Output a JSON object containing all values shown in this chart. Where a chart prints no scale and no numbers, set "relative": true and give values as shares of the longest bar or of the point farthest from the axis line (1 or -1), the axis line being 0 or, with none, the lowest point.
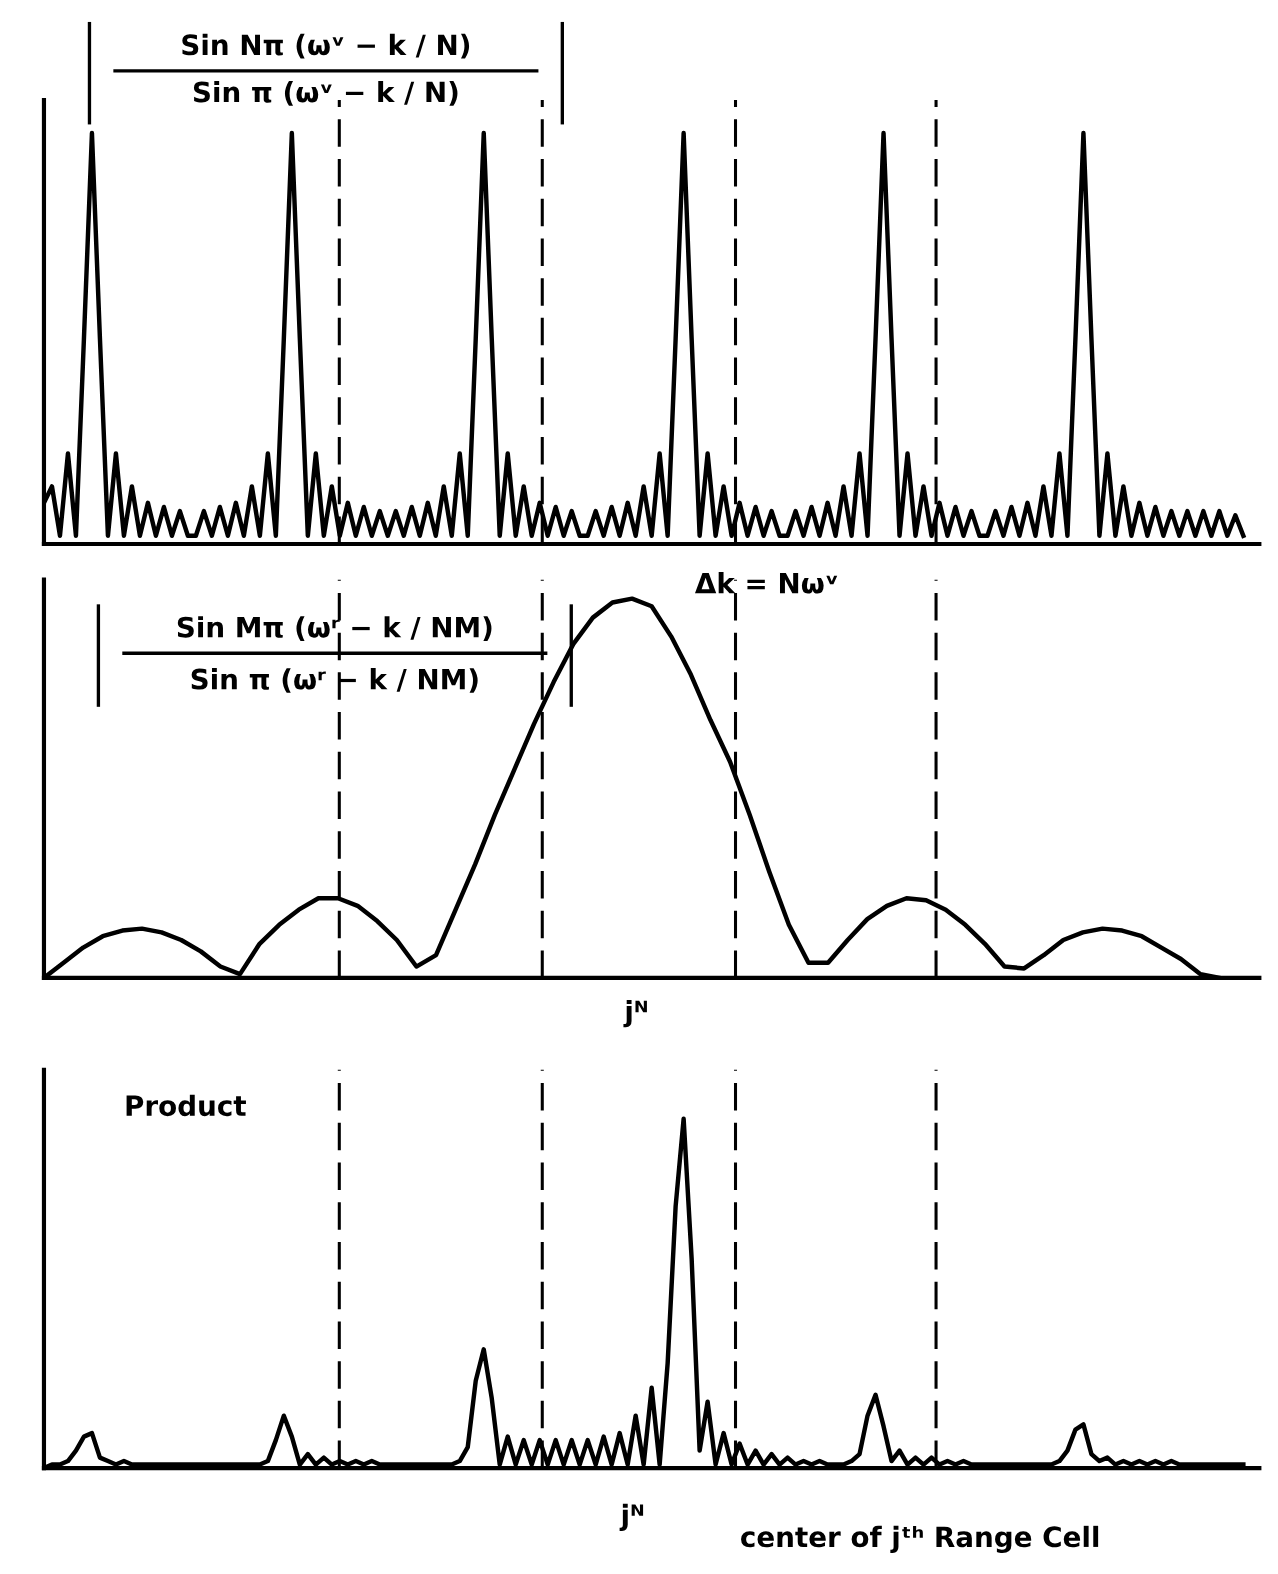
{
  "chart_data": [
    {
      "type": "line",
      "relative": true,
      "color": "#000000",
      "line_style": "solid",
      "categories": [
        null,
        null,
        null,
        null,
        null,
        null,
        null,
        null,
        null,
        null,
        null,
        null,
        null,
        null,
        null,
        null,
        null,
        null,
        null,
        null,
        null,
        null,
        null,
        null,
        null,
        null,
        null,
        null,
        null,
        null,
        null,
        null,
        null,
        null,
        null,
        null,
        null,
        null,
        null,
        null,
        null,
        null,
        null,
        null,
        null,
        null,
        null,
        null,
        null,
        null,
        null,
        null,
        null,
        null,
        null,
        null,
        null,
        null,
        null,
        null,
        null,
        null,
        null,
        null,
        null,
        null,
        null,
        null,
        null,
        null,
        null,
        null,
        null,
        null,
        null,
        null,
        null,
        null,
        null,
        null,
        null,
        null,
        null,
        null,
        null,
        null,
        null,
        null,
        null,
        null,
        null,
        null,
        null,
        null,
        null,
        null,
        null,
        null,
        null,
        null,
        null,
        null,
        null,
        null,
        null,
        null,
        null,
        null,
        null,
        null,
        null,
        null,
        null,
        null,
        null,
        null,
        null,
        null,
        null,
        null,
        null,
        null,
        null,
        null,
        null,
        null,
        null,
        null,
        null,
        null,
        null,
        null,
        null,
        null,
        null,
        null,
        null,
        null,
        null,
        null,
        null,
        null,
        null,
        null,
        null,
        null,
        null,
        null,
        null,
        null,
        null
      ],
      "values": [
        0.1,
        0.14,
        0.02,
        0.22,
        0.02,
        0.5,
        1,
        0.5,
        0.02,
        0.22,
        0.02,
        0.14,
        0.02,
        0.1,
        0.02,
        0.09,
        0.02,
        0.08,
        0.02,
        0.02,
        0.08,
        0.02,
        0.09,
        0.02,
        0.1,
        0.02,
        0.14,
        0.02,
        0.22,
        0.02,
        0.5,
        1,
        0.5,
        0.02,
        0.22,
        0.02,
        0.14,
        0.02,
        0.1,
        0.02,
        0.09,
        0.02,
        0.08,
        0.02,
        0.08,
        0.02,
        0.09,
        0.02,
        0.1,
        0.02,
        0.14,
        0.02,
        0.22,
        0.02,
        0.5,
        1,
        0.5,
        0.02,
        0.22,
        0.02,
        0.14,
        0.02,
        0.1,
        0.02,
        0.09,
        0.02,
        0.08,
        0.02,
        0.02,
        0.08,
        0.02,
        0.09,
        0.02,
        0.1,
        0.02,
        0.14,
        0.02,
        0.22,
        0.02,
        0.5,
        1,
        0.5,
        0.02,
        0.22,
        0.02,
        0.14,
        0.02,
        0.1,
        0.02,
        0.09,
        0.02,
        0.08,
        0.02,
        0.02,
        0.08,
        0.02,
        0.09,
        0.02,
        0.1,
        0.02,
        0.14,
        0.02,
        0.22,
        0.02,
        0.5,
        1,
        0.5,
        0.02,
        0.22,
        0.02,
        0.14,
        0.02,
        0.1,
        0.02,
        0.09,
        0.02,
        0.08,
        0.02,
        0.02,
        0.08,
        0.02,
        0.09,
        0.02,
        0.1,
        0.02,
        0.14,
        0.02,
        0.22,
        0.02,
        0.5,
        1,
        0.5,
        0.02,
        0.22,
        0.02,
        0.14,
        0.02,
        0.1,
        0.02,
        0.09,
        0.02,
        0.08,
        0.02,
        0.08,
        0.02,
        0.08,
        0.02,
        0.08,
        0.02,
        0.07,
        0.02
      ],
      "annotations": [
        "Sin Nπ (ωᵛ − k / N)",
        "Sin π (ωᵛ − k / N)",
        "Δk = Nωᵛ"
      ]
    },
    {
      "type": "line",
      "relative": true,
      "color": "#000000",
      "line_style": "solid",
      "categories": [
        null,
        null,
        null,
        null,
        null,
        null,
        null,
        null,
        null,
        null,
        null,
        null,
        null,
        null,
        null,
        null,
        null,
        null,
        null,
        null,
        null,
        null,
        null,
        null,
        null,
        null,
        null,
        null,
        null,
        null,
        null,
        null,
        null,
        null,
        null,
        null,
        null,
        null,
        null,
        null,
        null,
        null,
        null,
        null,
        null,
        null,
        null,
        null,
        null,
        null,
        null,
        null,
        null,
        null,
        null,
        null,
        null,
        null,
        null,
        null,
        null
      ],
      "values": [
        0,
        0.04,
        0.08,
        0.11,
        0.125,
        0.13,
        0.12,
        0.1,
        0.07,
        0.03,
        0.01,
        0.09,
        0.14,
        0.18,
        0.21,
        0.21,
        0.19,
        0.15,
        0.1,
        0.03,
        0.06,
        0.18,
        0.3,
        0.43,
        0.55,
        0.67,
        0.78,
        0.88,
        0.95,
        0.99,
        1,
        0.98,
        0.9,
        0.8,
        0.68,
        0.57,
        0.43,
        0.28,
        0.14,
        0.04,
        0.04,
        0.1,
        0.155,
        0.19,
        0.21,
        0.205,
        0.18,
        0.14,
        0.09,
        0.03,
        0.025,
        0.06,
        0.1,
        0.12,
        0.13,
        0.125,
        0.11,
        0.08,
        0.05,
        0.01,
        0
      ],
      "annotations": [
        "Sin Mπ (ωʳ − k / NM)",
        "Sin π (ωʳ − k / NM)",
        "jᴺ"
      ]
    },
    {
      "type": "line",
      "relative": true,
      "color": "#000000",
      "line_style": "solid",
      "categories": [
        null,
        null,
        null,
        null,
        null,
        null,
        null,
        null,
        null,
        null,
        null,
        null,
        null,
        null,
        null,
        null,
        null,
        null,
        null,
        null,
        null,
        null,
        null,
        null,
        null,
        null,
        null,
        null,
        null,
        null,
        null,
        null,
        null,
        null,
        null,
        null,
        null,
        null,
        null,
        null,
        null,
        null,
        null,
        null,
        null,
        null,
        null,
        null,
        null,
        null,
        null,
        null,
        null,
        null,
        null,
        null,
        null,
        null,
        null,
        null,
        null,
        null,
        null,
        null,
        null,
        null,
        null,
        null,
        null,
        null,
        null,
        null,
        null,
        null,
        null,
        null,
        null,
        null,
        null,
        null,
        null,
        null,
        null,
        null,
        null,
        null,
        null,
        null,
        null,
        null,
        null,
        null,
        null,
        null,
        null,
        null,
        null,
        null,
        null,
        null,
        null,
        null,
        null,
        null,
        null,
        null,
        null,
        null,
        null,
        null,
        null,
        null,
        null,
        null,
        null,
        null,
        null,
        null,
        null,
        null,
        null,
        null,
        null,
        null,
        null,
        null,
        null,
        null,
        null,
        null,
        null,
        null,
        null,
        null,
        null,
        null,
        null,
        null,
        null,
        null,
        null,
        null,
        null,
        null,
        null,
        null,
        null,
        null,
        null,
        null,
        null
      ],
      "values": [
        0,
        0.01,
        0.01,
        0.02,
        0.05,
        0.09,
        0.1,
        0.03,
        0.02,
        0.01,
        0.02,
        0.01,
        0.01,
        0.01,
        0.01,
        0.01,
        0.01,
        0.01,
        0.01,
        0.01,
        0.01,
        0.01,
        0.01,
        0.01,
        0.01,
        0.01,
        0.01,
        0.01,
        0.02,
        0.08,
        0.15,
        0.09,
        0.01,
        0.04,
        0.01,
        0.03,
        0.01,
        0.02,
        0.01,
        0.02,
        0.01,
        0.02,
        0.01,
        0.01,
        0.01,
        0.01,
        0.01,
        0.01,
        0.01,
        0.01,
        0.01,
        0.01,
        0.02,
        0.06,
        0.25,
        0.34,
        0.2,
        0.01,
        0.09,
        0.01,
        0.08,
        0.01,
        0.08,
        0.01,
        0.08,
        0.01,
        0.08,
        0.01,
        0.08,
        0.01,
        0.09,
        0.01,
        0.1,
        0.01,
        0.15,
        0.01,
        0.23,
        0.01,
        0.3,
        0.75,
        1,
        0.6,
        0.05,
        0.19,
        0.01,
        0.1,
        0.01,
        0.07,
        0.01,
        0.05,
        0.01,
        0.04,
        0.01,
        0.03,
        0.01,
        0.02,
        0.01,
        0.02,
        0.01,
        0.01,
        0.01,
        0.02,
        0.04,
        0.15,
        0.21,
        0.12,
        0.02,
        0.05,
        0.01,
        0.03,
        0.01,
        0.03,
        0.01,
        0.02,
        0.01,
        0.02,
        0.01,
        0.01,
        0.01,
        0.01,
        0.01,
        0.01,
        0.01,
        0.01,
        0.01,
        0.01,
        0.01,
        0.02,
        0.05,
        0.11,
        0.125,
        0.04,
        0.02,
        0.03,
        0.01,
        0.02,
        0.01,
        0.02,
        0.01,
        0.02,
        0.01,
        0.02,
        0.01,
        0.01,
        0.01,
        0.01,
        0.01,
        0.01,
        0.01,
        0.01,
        0.01
      ],
      "annotations": [
        "Product",
        "jᴺ",
        "center of jᵗʰ Range Cell"
      ]
    }
  ]
}
